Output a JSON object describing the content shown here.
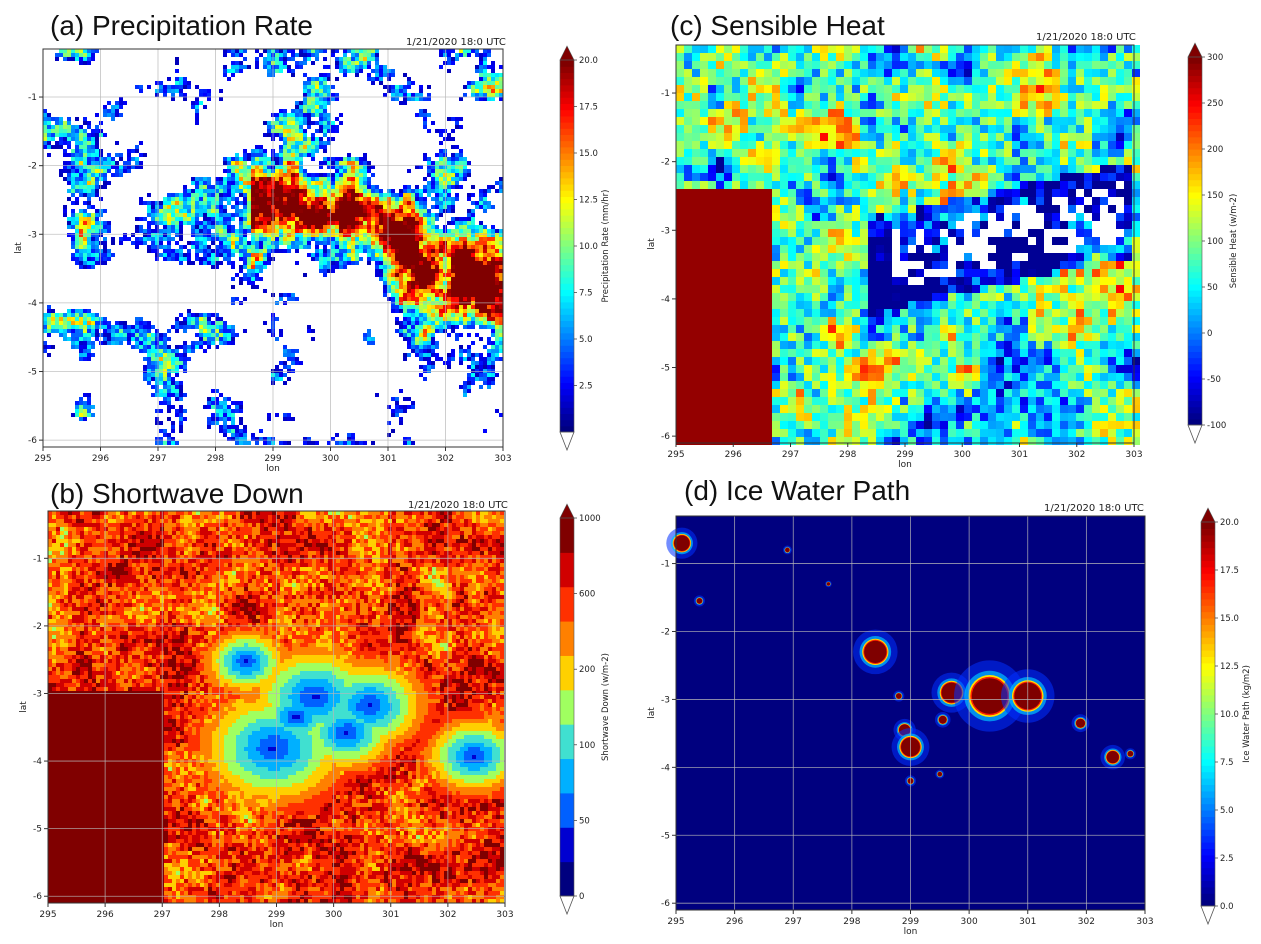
{
  "chart_data": [
    {
      "id": "a",
      "type": "heatmap",
      "title": "(a) Precipitation Rate",
      "timestamp": "1/21/2020 18:0 UTC",
      "xlabel": "lon",
      "ylabel": "lat",
      "xlim": [
        295,
        303
      ],
      "ylim": [
        -6.1,
        -0.3
      ],
      "xticks": [
        "295",
        "296",
        "297",
        "298",
        "299",
        "300",
        "301",
        "302",
        "303"
      ],
      "yticks": [
        "-1",
        "-2",
        "-3",
        "-4",
        "-5",
        "-6"
      ],
      "grid": true,
      "colorbar": {
        "label": "Precipitation Rate (mm/hr)",
        "min": 0,
        "max": 20,
        "ticks": [
          "2.5",
          "5.0",
          "7.5",
          "10.0",
          "12.5",
          "15.0",
          "17.5",
          "20.0"
        ],
        "extend": "both"
      },
      "field": "sparse-convective-cells"
    },
    {
      "id": "b",
      "type": "heatmap",
      "title": "(b) Shortwave Down",
      "timestamp": "1/21/2020 18:0 UTC",
      "xlabel": "lon",
      "ylabel": "lat",
      "xlim": [
        295,
        303
      ],
      "ylim": [
        -6.1,
        -0.3
      ],
      "xticks": [
        "295",
        "296",
        "297",
        "298",
        "299",
        "300",
        "301",
        "302",
        "303"
      ],
      "yticks": [
        "-1",
        "-2",
        "-3",
        "-4",
        "-5",
        "-6"
      ],
      "grid": true,
      "colorbar": {
        "label": "Shortwave Down (w/m-2)",
        "ticks": [
          "0",
          "50",
          "100",
          "200",
          "600",
          "1000"
        ],
        "extend": "both"
      },
      "field": "high-background-with-cloud-shadows"
    },
    {
      "id": "c",
      "type": "heatmap",
      "title": "(c) Sensible Heat",
      "timestamp": "1/21/2020 18:0 UTC",
      "xlabel": "lon",
      "ylabel": "lat",
      "xlim": [
        295,
        303
      ],
      "ylim": [
        -6.1,
        -0.3
      ],
      "xticks": [
        "295",
        "296",
        "297",
        "298",
        "299",
        "300",
        "301",
        "302",
        "303"
      ],
      "yticks": [
        "-1",
        "-2",
        "-3",
        "-4",
        "-5",
        "-6"
      ],
      "grid": false,
      "colorbar": {
        "label": "Sensible Heat (w/m-2)",
        "min": -100,
        "max": 300,
        "ticks": [
          "-100",
          "-50",
          "0",
          "50",
          "100",
          "150",
          "200",
          "250",
          "300"
        ],
        "extend": "both"
      },
      "field": "noisy-mixed-field"
    },
    {
      "id": "d",
      "type": "heatmap",
      "title": "(d) Ice Water Path",
      "timestamp": "1/21/2020 18:0 UTC",
      "xlabel": "lon",
      "ylabel": "lat",
      "xlim": [
        295,
        303
      ],
      "ylim": [
        -6.1,
        -0.3
      ],
      "xticks": [
        "295",
        "296",
        "297",
        "298",
        "299",
        "300",
        "301",
        "302",
        "303"
      ],
      "yticks": [
        "-1",
        "-2",
        "-3",
        "-4",
        "-5",
        "-6"
      ],
      "grid": true,
      "colorbar": {
        "label": "Ice Water Path (kg/m2)",
        "min": 0,
        "max": 20,
        "ticks": [
          "0.0",
          "2.5",
          "5.0",
          "7.5",
          "10.0",
          "12.5",
          "15.0",
          "17.5",
          "20.0"
        ],
        "extend": "both"
      },
      "field": "isolated-cells",
      "cells": [
        {
          "lon": 295.1,
          "lat": -0.7,
          "r": 0.14
        },
        {
          "lon": 295.4,
          "lat": -1.55,
          "r": 0.05
        },
        {
          "lon": 296.9,
          "lat": -0.8,
          "r": 0.04
        },
        {
          "lon": 297.6,
          "lat": -1.3,
          "r": 0.03
        },
        {
          "lon": 298.4,
          "lat": -2.3,
          "r": 0.2
        },
        {
          "lon": 298.8,
          "lat": -2.95,
          "r": 0.05
        },
        {
          "lon": 298.9,
          "lat": -3.45,
          "r": 0.1
        },
        {
          "lon": 299.0,
          "lat": -3.7,
          "r": 0.17
        },
        {
          "lon": 299.0,
          "lat": -4.2,
          "r": 0.05
        },
        {
          "lon": 299.5,
          "lat": -4.1,
          "r": 0.04
        },
        {
          "lon": 299.55,
          "lat": -3.3,
          "r": 0.07
        },
        {
          "lon": 299.7,
          "lat": -2.9,
          "r": 0.18
        },
        {
          "lon": 300.35,
          "lat": -2.95,
          "r": 0.32
        },
        {
          "lon": 301.0,
          "lat": -2.95,
          "r": 0.24
        },
        {
          "lon": 301.9,
          "lat": -3.35,
          "r": 0.08
        },
        {
          "lon": 302.45,
          "lat": -3.85,
          "r": 0.11
        },
        {
          "lon": 302.75,
          "lat": -3.8,
          "r": 0.05
        }
      ]
    }
  ]
}
